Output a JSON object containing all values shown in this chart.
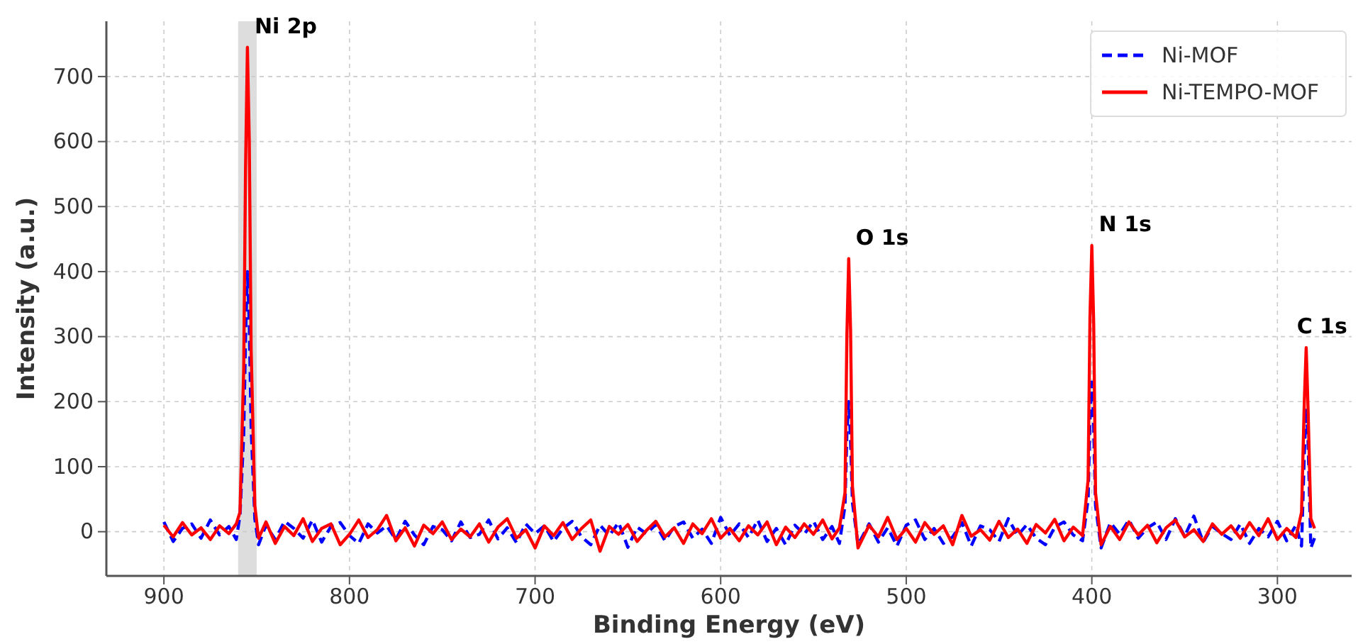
{
  "chart_data": {
    "type": "line",
    "xlabel": "Binding Energy (eV)",
    "ylabel": "Intensity (a.u.)",
    "x": [
      900,
      895,
      890,
      885,
      880,
      875,
      870,
      865,
      861,
      859,
      857,
      856,
      855,
      854,
      853,
      851,
      849,
      845,
      840,
      835,
      830,
      825,
      820,
      815,
      810,
      805,
      800,
      795,
      790,
      785,
      780,
      775,
      770,
      765,
      760,
      755,
      750,
      745,
      740,
      735,
      730,
      725,
      720,
      715,
      710,
      705,
      700,
      695,
      690,
      685,
      680,
      675,
      670,
      665,
      660,
      655,
      650,
      645,
      640,
      635,
      630,
      625,
      620,
      615,
      610,
      605,
      600,
      595,
      590,
      585,
      580,
      575,
      570,
      565,
      560,
      555,
      550,
      545,
      540,
      536,
      533,
      532,
      531,
      530,
      529,
      526,
      520,
      515,
      510,
      505,
      500,
      495,
      490,
      485,
      480,
      475,
      470,
      465,
      460,
      455,
      450,
      445,
      440,
      435,
      430,
      425,
      420,
      415,
      410,
      405,
      402,
      401,
      400,
      399,
      398,
      395,
      390,
      385,
      380,
      375,
      370,
      365,
      360,
      355,
      350,
      345,
      340,
      335,
      330,
      325,
      320,
      315,
      310,
      305,
      300,
      295,
      290,
      287,
      285.5,
      284.5,
      283.5,
      282,
      280
    ],
    "series": [
      {
        "name": "Ni-MOF",
        "color": "#0000ff",
        "line_style": "dashed",
        "values": [
          15,
          -15,
          5,
          12,
          -10,
          18,
          -5,
          8,
          -12,
          25,
          150,
          300,
          400,
          320,
          160,
          20,
          -20,
          10,
          -12,
          16,
          5,
          -10,
          18,
          -16,
          8,
          14,
          -6,
          -18,
          12,
          -2,
          9,
          -12,
          16,
          -5,
          -20,
          8,
          3,
          -14,
          15,
          -9,
          -4,
          18,
          -11,
          6,
          -17,
          12,
          -3,
          9,
          -15,
          5,
          16,
          -8,
          -20,
          10,
          -6,
          14,
          -24,
          7,
          -3,
          11,
          -14,
          8,
          15,
          -10,
          4,
          -18,
          22,
          -6,
          12,
          -9,
          18,
          -15,
          5,
          -20,
          10,
          -4,
          16,
          -12,
          8,
          -18,
          40,
          150,
          200,
          140,
          45,
          -20,
          12,
          -16,
          6,
          -22,
          10,
          18,
          -12,
          5,
          -18,
          -8,
          14,
          -22,
          9,
          3,
          -15,
          20,
          -6,
          11,
          -10,
          -20,
          7,
          15,
          -5,
          -14,
          50,
          170,
          230,
          160,
          40,
          -25,
          14,
          -4,
          18,
          -10,
          6,
          15,
          -12,
          20,
          -7,
          24,
          -16,
          8,
          -3,
          -12,
          12,
          -18,
          5,
          -8,
          16,
          -14,
          10,
          -22,
          120,
          190,
          140,
          -25,
          -10
        ]
      },
      {
        "name": "Ni-TEMPO-MOF",
        "color": "#ff0000",
        "line_style": "solid",
        "values": [
          10,
          -8,
          14,
          -5,
          6,
          -12,
          9,
          -3,
          12,
          30,
          250,
          560,
          745,
          600,
          280,
          40,
          -10,
          15,
          -18,
          8,
          -6,
          20,
          -15,
          5,
          12,
          -20,
          -4,
          18,
          -9,
          3,
          25,
          -14,
          6,
          -22,
          10,
          -3,
          15,
          -12,
          4,
          -8,
          12,
          -16,
          7,
          20,
          -10,
          3,
          -25,
          9,
          -6,
          14,
          -12,
          5,
          18,
          -30,
          8,
          -4,
          11,
          -15,
          2,
          16,
          -8,
          6,
          -18,
          12,
          -3,
          20,
          -10,
          5,
          -14,
          9,
          -5,
          15,
          -20,
          7,
          -9,
          12,
          -4,
          18,
          -11,
          6,
          60,
          300,
          420,
          310,
          70,
          -25,
          10,
          -8,
          22,
          -12,
          5,
          -16,
          14,
          -4,
          9,
          -20,
          25,
          -7,
          3,
          -13,
          16,
          -9,
          4,
          -18,
          11,
          -2,
          19,
          -14,
          7,
          -6,
          80,
          330,
          440,
          320,
          60,
          -20,
          8,
          -12,
          15,
          -5,
          10,
          -17,
          6,
          18,
          -8,
          3,
          -15,
          12,
          -4,
          9,
          -10,
          14,
          -6,
          20,
          -12,
          5,
          -9,
          30,
          200,
          283,
          190,
          20,
          5
        ]
      }
    ],
    "xlim": [
      931,
      260
    ],
    "xticks": [
      900,
      800,
      700,
      600,
      500,
      400,
      300
    ],
    "ylim": [
      -68,
      785
    ],
    "yticks": [
      0,
      100,
      200,
      300,
      400,
      500,
      600,
      700
    ],
    "grid": true,
    "legend": "top right",
    "bands": [
      {
        "axis": "x",
        "from": 860,
        "to": 850,
        "color": "#dddddd"
      }
    ],
    "annotations": [
      {
        "text": "Ni 2p",
        "x": 855,
        "y": 745
      },
      {
        "text": "O 1s",
        "x": 531,
        "y": 420
      },
      {
        "text": "N 1s",
        "x": 400,
        "y": 440
      },
      {
        "text": "C 1s",
        "x": 284.5,
        "y": 283
      }
    ]
  }
}
